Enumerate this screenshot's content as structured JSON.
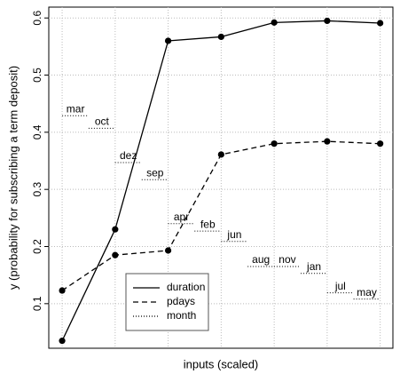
{
  "chart_data": {
    "type": "line",
    "xlabel": "inputs (scaled)",
    "ylabel": "y (probability for subscribing a term deposit)",
    "x": [
      0,
      0.1667,
      0.3333,
      0.5,
      0.6667,
      0.8333,
      1
    ],
    "xlim": [
      -0.042,
      1.04
    ],
    "ylim": [
      0.022,
      0.619
    ],
    "yticks": [
      0.1,
      0.2,
      0.3,
      0.4,
      0.5,
      0.6
    ],
    "grid": true,
    "legend": "bottom-left",
    "series": [
      {
        "name": "duration",
        "color": "#000000",
        "dash": "solid",
        "values": [
          0.035,
          0.23,
          0.56,
          0.567,
          0.592,
          0.595,
          0.591
        ]
      },
      {
        "name": "pdays",
        "color": "#000000",
        "dash": "dashed",
        "values": [
          0.123,
          0.185,
          0.193,
          0.361,
          0.38,
          0.384,
          0.38
        ]
      },
      {
        "name": "month",
        "color": "#000000",
        "dash": "dotted",
        "x": [
          0.042,
          0.125,
          0.208,
          0.292,
          0.375,
          0.458,
          0.542,
          0.625,
          0.708,
          0.792,
          0.875,
          0.958
        ],
        "labels": [
          "mar",
          "oct",
          "dez",
          "sep",
          "apr",
          "feb",
          "jun",
          "aug",
          "nov",
          "jan",
          "jul",
          "may"
        ],
        "values": [
          0.429,
          0.407,
          0.347,
          0.317,
          0.24,
          0.227,
          0.209,
          0.165,
          0.165,
          0.153,
          0.119,
          0.108
        ]
      }
    ]
  }
}
